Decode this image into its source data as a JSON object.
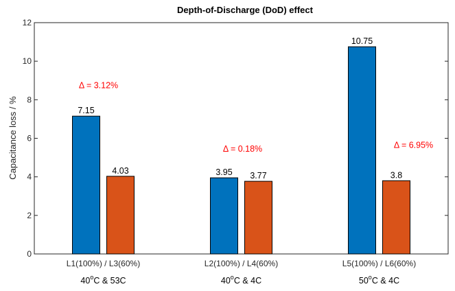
{
  "chart_data": {
    "type": "bar",
    "title": "Depth-of-Discharge (DoD) effect",
    "xlabel": "",
    "ylabel": "Capacitance loss / %",
    "ylim": [
      0,
      12
    ],
    "yticks": [
      0,
      2,
      4,
      6,
      8,
      10,
      12
    ],
    "grid": false,
    "legend": "none",
    "categories": [
      "L1(100%) / L3(60%)",
      "L2(100%) / L4(60%)",
      "L5(100%) / L6(60%)"
    ],
    "conditions": [
      {
        "t1": "40",
        "sup": "o",
        "t2": "C & 53C"
      },
      {
        "t1": "40",
        "sup": "o",
        "t2": "C & 4C"
      },
      {
        "t1": "50",
        "sup": "o",
        "t2": "C & 4C"
      }
    ],
    "series": [
      {
        "values": [
          7.15,
          3.95,
          10.75
        ],
        "labels": [
          "7.15",
          "3.95",
          "10.75"
        ],
        "color": "#0072BD"
      },
      {
        "values": [
          4.03,
          3.77,
          3.8
        ],
        "labels": [
          "4.03",
          "3.77",
          "3.8"
        ],
        "color": "#D95319"
      }
    ],
    "annotations": [
      {
        "text": "Δ = 3.12%",
        "y": 8.6
      },
      {
        "text": "Δ = 0.18%",
        "y": 5.3
      },
      {
        "text": "Δ = 6.95%",
        "y": 5.5
      }
    ],
    "annotation_color": "#FF0000"
  }
}
